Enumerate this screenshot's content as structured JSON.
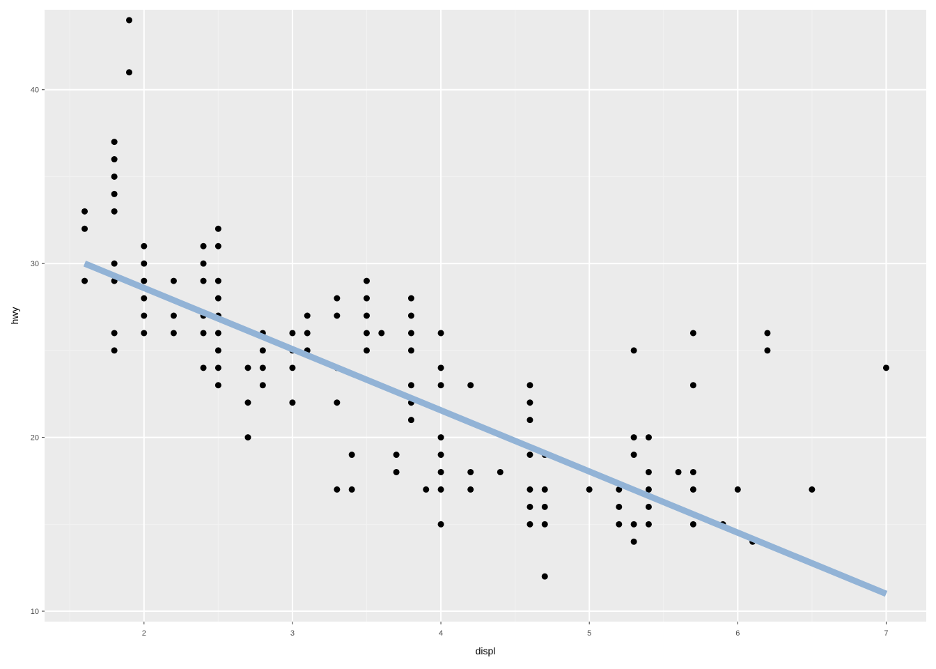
{
  "colors": {
    "panel_background": "#EBEBEB",
    "grid_major": "#FFFFFF",
    "grid_minor": "#F2F2F2",
    "point": "#000000",
    "fit_line": "#92B3D6"
  },
  "chart_data": {
    "type": "scatter",
    "title": "",
    "xlabel": "displ",
    "ylabel": "hwy",
    "xlim": [
      1.33,
      7.27
    ],
    "ylim": [
      9.4,
      44.6
    ],
    "x_ticks": [
      2,
      3,
      4,
      5,
      6,
      7
    ],
    "y_ticks": [
      10,
      20,
      30,
      40
    ],
    "x_tick_labels": [
      "2",
      "3",
      "4",
      "5",
      "6",
      "7"
    ],
    "y_tick_labels": [
      "10",
      "20",
      "30",
      "40"
    ],
    "grid": true,
    "legend": "none",
    "points": [
      [
        1.6,
        33
      ],
      [
        1.6,
        32
      ],
      [
        1.6,
        29
      ],
      [
        1.8,
        37
      ],
      [
        1.8,
        36
      ],
      [
        1.8,
        35
      ],
      [
        1.8,
        34
      ],
      [
        1.8,
        33
      ],
      [
        1.8,
        30
      ],
      [
        1.8,
        29
      ],
      [
        1.8,
        26
      ],
      [
        1.8,
        25
      ],
      [
        1.9,
        44
      ],
      [
        1.9,
        41
      ],
      [
        2.0,
        31
      ],
      [
        2.0,
        30
      ],
      [
        2.0,
        29
      ],
      [
        2.0,
        28
      ],
      [
        2.0,
        27
      ],
      [
        2.0,
        26
      ],
      [
        2.2,
        29
      ],
      [
        2.2,
        27
      ],
      [
        2.2,
        26
      ],
      [
        2.4,
        31
      ],
      [
        2.4,
        30
      ],
      [
        2.4,
        29
      ],
      [
        2.4,
        27
      ],
      [
        2.4,
        26
      ],
      [
        2.4,
        24
      ],
      [
        2.5,
        32
      ],
      [
        2.5,
        31
      ],
      [
        2.5,
        29
      ],
      [
        2.5,
        28
      ],
      [
        2.5,
        27
      ],
      [
        2.5,
        26
      ],
      [
        2.5,
        25
      ],
      [
        2.5,
        24
      ],
      [
        2.5,
        23
      ],
      [
        2.7,
        24
      ],
      [
        2.7,
        22
      ],
      [
        2.7,
        20
      ],
      [
        2.8,
        26
      ],
      [
        2.8,
        25
      ],
      [
        2.8,
        24
      ],
      [
        2.8,
        23
      ],
      [
        3.0,
        26
      ],
      [
        3.0,
        25
      ],
      [
        3.0,
        24
      ],
      [
        3.0,
        22
      ],
      [
        3.1,
        27
      ],
      [
        3.1,
        26
      ],
      [
        3.1,
        25
      ],
      [
        3.3,
        28
      ],
      [
        3.3,
        27
      ],
      [
        3.3,
        24
      ],
      [
        3.3,
        22
      ],
      [
        3.3,
        17
      ],
      [
        3.4,
        19
      ],
      [
        3.4,
        17
      ],
      [
        3.5,
        29
      ],
      [
        3.5,
        28
      ],
      [
        3.5,
        27
      ],
      [
        3.5,
        26
      ],
      [
        3.5,
        25
      ],
      [
        3.6,
        26
      ],
      [
        3.7,
        19
      ],
      [
        3.7,
        18
      ],
      [
        3.8,
        28
      ],
      [
        3.8,
        27
      ],
      [
        3.8,
        26
      ],
      [
        3.8,
        25
      ],
      [
        3.8,
        23
      ],
      [
        3.8,
        22
      ],
      [
        3.8,
        21
      ],
      [
        3.9,
        17
      ],
      [
        4.0,
        26
      ],
      [
        4.0,
        24
      ],
      [
        4.0,
        23
      ],
      [
        4.0,
        20
      ],
      [
        4.0,
        19
      ],
      [
        4.0,
        18
      ],
      [
        4.0,
        17
      ],
      [
        4.0,
        15
      ],
      [
        4.2,
        23
      ],
      [
        4.2,
        18
      ],
      [
        4.2,
        17
      ],
      [
        4.4,
        18
      ],
      [
        4.6,
        23
      ],
      [
        4.6,
        22
      ],
      [
        4.6,
        21
      ],
      [
        4.6,
        19
      ],
      [
        4.6,
        17
      ],
      [
        4.6,
        16
      ],
      [
        4.6,
        15
      ],
      [
        4.7,
        19
      ],
      [
        4.7,
        17
      ],
      [
        4.7,
        16
      ],
      [
        4.7,
        15
      ],
      [
        4.7,
        12
      ],
      [
        5.0,
        17
      ],
      [
        5.2,
        17
      ],
      [
        5.2,
        16
      ],
      [
        5.2,
        15
      ],
      [
        5.3,
        25
      ],
      [
        5.3,
        20
      ],
      [
        5.3,
        19
      ],
      [
        5.3,
        15
      ],
      [
        5.3,
        14
      ],
      [
        5.4,
        20
      ],
      [
        5.4,
        18
      ],
      [
        5.4,
        17
      ],
      [
        5.4,
        16
      ],
      [
        5.4,
        15
      ],
      [
        5.6,
        18
      ],
      [
        5.7,
        26
      ],
      [
        5.7,
        23
      ],
      [
        5.7,
        18
      ],
      [
        5.7,
        17
      ],
      [
        5.7,
        15
      ],
      [
        5.9,
        15
      ],
      [
        6.0,
        17
      ],
      [
        6.1,
        14
      ],
      [
        6.2,
        26
      ],
      [
        6.2,
        25
      ],
      [
        6.5,
        17
      ],
      [
        7.0,
        24
      ]
    ],
    "fit_line": {
      "x": [
        1.6,
        7.0
      ],
      "y": [
        30.0,
        11.0
      ]
    }
  }
}
